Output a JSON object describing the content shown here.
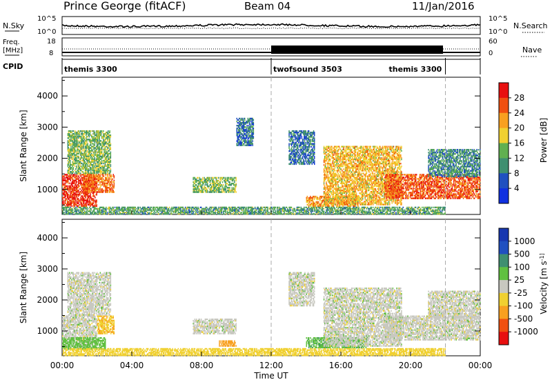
{
  "header": {
    "station": "Prince George (fitACF)",
    "beam": "Beam 04",
    "date": "11/Jan/2016"
  },
  "strip": {
    "nsky_label": "N.Sky",
    "nsky_ticks": [
      "10^5",
      "10^0"
    ],
    "nsearch_label": "N.Search",
    "nsearch_ticks": [
      "10^5",
      "10^0"
    ],
    "freq_label": "Freq.",
    "freq_unit": "[MHz]",
    "freq_ticks": [
      "18",
      "8"
    ],
    "nave_label": "Nave",
    "nave_ticks": [
      "60",
      "0"
    ],
    "cpid_label": "CPID",
    "cpid_segments": [
      {
        "name": "themis 3300",
        "start_h": 0,
        "end_h": 12
      },
      {
        "name": "twofsound 3503",
        "start_h": 12,
        "end_h": 22
      },
      {
        "name": "themis 3300",
        "start_h": 22,
        "end_h": 24
      }
    ]
  },
  "xaxis": {
    "label": "Time UT",
    "ticks": [
      "00:00",
      "04:00",
      "08:00",
      "12:00",
      "16:00",
      "20:00",
      "00:00"
    ]
  },
  "colors": {
    "power_scale": [
      "#1030e0",
      "#2050c0",
      "#3f8f70",
      "#60b050",
      "#f0d030",
      "#f8a020",
      "#f05010",
      "#e81010"
    ],
    "velocity_scale": [
      "#e81010",
      "#f05010",
      "#f8a020",
      "#f0d030",
      "#c8c8c0",
      "#60c040",
      "#3f8f70",
      "#2050c0",
      "#1838b0"
    ]
  },
  "chart_data": [
    {
      "type": "heatmap",
      "ylabel": "Slant Range [km]",
      "xlabel": "",
      "yticks": [
        "1000",
        "2000",
        "3000",
        "4000"
      ],
      "ylim": [
        200,
        4600
      ],
      "xlim_hours": [
        0,
        24
      ],
      "colorbar_label": "Power [dB]",
      "colorbar_ticks": [
        "4",
        "8",
        "12",
        "16",
        "20",
        "24",
        "28"
      ],
      "colorbar_range": [
        0,
        32
      ],
      "echo_regions": [
        {
          "t0": 0.0,
          "t1": 2.0,
          "r0": 450,
          "r1": 1500,
          "level": 28
        },
        {
          "t0": 0.3,
          "t1": 2.8,
          "r0": 1500,
          "r1": 2900,
          "level": 14
        },
        {
          "t0": 1.2,
          "t1": 3.0,
          "r0": 900,
          "r1": 1500,
          "level": 24
        },
        {
          "t0": 7.5,
          "t1": 10.0,
          "r0": 900,
          "r1": 1400,
          "level": 14
        },
        {
          "t0": 10.0,
          "t1": 11.0,
          "r0": 2400,
          "r1": 3300,
          "level": 8
        },
        {
          "t0": 13.0,
          "t1": 14.5,
          "r0": 1800,
          "r1": 2900,
          "level": 8
        },
        {
          "t0": 14.0,
          "t1": 17.0,
          "r0": 450,
          "r1": 800,
          "level": 22
        },
        {
          "t0": 15.0,
          "t1": 19.5,
          "r0": 500,
          "r1": 2400,
          "level": 20
        },
        {
          "t0": 18.5,
          "t1": 24.0,
          "r0": 700,
          "r1": 1500,
          "level": 26
        },
        {
          "t0": 21.0,
          "t1": 24.0,
          "r0": 1400,
          "r1": 2300,
          "level": 10
        },
        {
          "t0": 0.0,
          "t1": 22.0,
          "r0": 200,
          "r1": 450,
          "level": 12
        }
      ]
    },
    {
      "type": "heatmap",
      "ylabel": "Slant Range [km]",
      "xlabel": "Time UT",
      "yticks": [
        "1000",
        "2000",
        "3000",
        "4000"
      ],
      "ylim": [
        200,
        4600
      ],
      "xlim_hours": [
        0,
        24
      ],
      "colorbar_label": "Velocity [m s^-1]",
      "colorbar_ticks": [
        "-1000",
        "-500",
        "-100",
        "-25",
        "25",
        "100",
        "500",
        "1000"
      ],
      "echo_regions": [
        {
          "t0": 0.0,
          "t1": 2.0,
          "r0": 450,
          "r1": 1500,
          "level": 0
        },
        {
          "t0": 0.3,
          "t1": 2.8,
          "r0": 1500,
          "r1": 2900,
          "level": 0
        },
        {
          "t0": 0.0,
          "t1": 2.5,
          "r0": 400,
          "r1": 800,
          "level": 60
        },
        {
          "t0": 2.0,
          "t1": 3.0,
          "r0": 900,
          "r1": 1500,
          "level": -90
        },
        {
          "t0": 7.5,
          "t1": 10.0,
          "r0": 900,
          "r1": 1400,
          "level": 0
        },
        {
          "t0": 9.0,
          "t1": 10.0,
          "r0": 500,
          "r1": 700,
          "level": -300
        },
        {
          "t0": 13.0,
          "t1": 14.5,
          "r0": 1800,
          "r1": 2900,
          "level": 0
        },
        {
          "t0": 14.0,
          "t1": 17.5,
          "r0": 450,
          "r1": 800,
          "level": 80
        },
        {
          "t0": 15.0,
          "t1": 19.5,
          "r0": 500,
          "r1": 2400,
          "level": 0
        },
        {
          "t0": 18.5,
          "t1": 24.0,
          "r0": 700,
          "r1": 1500,
          "level": 0
        },
        {
          "t0": 21.0,
          "t1": 24.0,
          "r0": 1400,
          "r1": 2300,
          "level": 0
        },
        {
          "t0": 0.0,
          "t1": 22.0,
          "r0": 200,
          "r1": 450,
          "level": -60
        }
      ]
    }
  ]
}
